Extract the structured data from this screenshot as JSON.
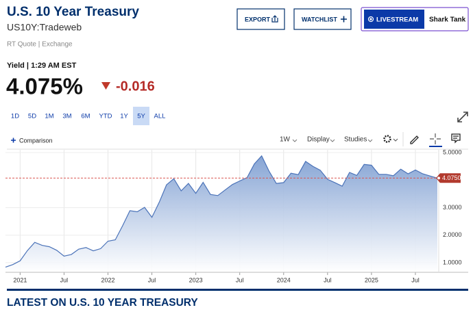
{
  "header": {
    "title": "U.S. 10 Year Treasury",
    "symbol": "US10Y:Tradeweb",
    "source": "RT Quote | Exchange"
  },
  "buttons": {
    "export": "EXPORT",
    "watchlist": "WATCHLIST",
    "livestream": "LIVESTREAM",
    "show": "Shark Tank"
  },
  "quote": {
    "label": "Yield | 1:29 AM EST",
    "price": "4.075%",
    "change": "-0.016"
  },
  "ranges": [
    "1D",
    "5D",
    "1M",
    "3M",
    "6M",
    "YTD",
    "1Y",
    "5Y",
    "ALL"
  ],
  "active_range": "5Y",
  "toolbar": {
    "comparison": "Comparison",
    "interval": "1W",
    "display": "Display",
    "studies": "Studies"
  },
  "chart_data": {
    "type": "area",
    "x": [
      "2020-11",
      "2020-12",
      "2021-01",
      "2021-02",
      "2021-03",
      "2021-04",
      "2021-05",
      "2021-06",
      "2021-07",
      "2021-08",
      "2021-09",
      "2021-10",
      "2021-11",
      "2021-12",
      "2022-01",
      "2022-02",
      "2022-03",
      "2022-04",
      "2022-05",
      "2022-06",
      "2022-07",
      "2022-08",
      "2022-09",
      "2022-10",
      "2022-11",
      "2022-12",
      "2023-01",
      "2023-02",
      "2023-03",
      "2023-04",
      "2023-05",
      "2023-06",
      "2023-07",
      "2023-08",
      "2023-09",
      "2023-10",
      "2023-11",
      "2023-12",
      "2024-01",
      "2024-02",
      "2024-03",
      "2024-04",
      "2024-05",
      "2024-06",
      "2024-07",
      "2024-08",
      "2024-09",
      "2024-10",
      "2024-11",
      "2024-12",
      "2025-01",
      "2025-02",
      "2025-03",
      "2025-04",
      "2025-05",
      "2025-06",
      "2025-07",
      "2025-08",
      "2025-09",
      "2025-10"
    ],
    "values": [
      0.84,
      0.93,
      1.07,
      1.44,
      1.74,
      1.63,
      1.58,
      1.45,
      1.24,
      1.3,
      1.49,
      1.55,
      1.43,
      1.51,
      1.78,
      1.83,
      2.34,
      2.89,
      2.85,
      3.01,
      2.65,
      3.19,
      3.83,
      4.05,
      3.61,
      3.88,
      3.52,
      3.92,
      3.48,
      3.44,
      3.64,
      3.84,
      3.97,
      4.09,
      4.59,
      4.88,
      4.33,
      3.88,
      3.91,
      4.25,
      4.2,
      4.68,
      4.5,
      4.36,
      4.03,
      3.91,
      3.78,
      4.28,
      4.17,
      4.57,
      4.54,
      4.21,
      4.21,
      4.16,
      4.4,
      4.23,
      4.37,
      4.23,
      4.15,
      4.07
    ],
    "color": "#4a72b8",
    "xlim": [
      "2020-11",
      "2025-10"
    ],
    "ylim": [
      0.65,
      5.1
    ],
    "xticks": [
      {
        "value": "2021-01",
        "label": "2021"
      },
      {
        "value": "2021-07",
        "label": "Jul"
      },
      {
        "value": "2022-01",
        "label": "2022"
      },
      {
        "value": "2022-07",
        "label": "Jul"
      },
      {
        "value": "2023-01",
        "label": "2023"
      },
      {
        "value": "2023-07",
        "label": "Jul"
      },
      {
        "value": "2024-01",
        "label": "2024"
      },
      {
        "value": "2024-07",
        "label": "Jul"
      },
      {
        "value": "2025-01",
        "label": "2025"
      },
      {
        "value": "2025-07",
        "label": "Jul"
      }
    ],
    "yticks": [
      {
        "value": 1,
        "label": "1.0000"
      },
      {
        "value": 2,
        "label": "2.0000"
      },
      {
        "value": 3,
        "label": "3.0000"
      },
      {
        "value": 5,
        "label": "5.0000"
      }
    ],
    "last_value": {
      "value": 4.075,
      "label": "4.0750"
    },
    "grid": true
  },
  "section_title": "LATEST ON U.S. 10 YEAR TREASURY"
}
